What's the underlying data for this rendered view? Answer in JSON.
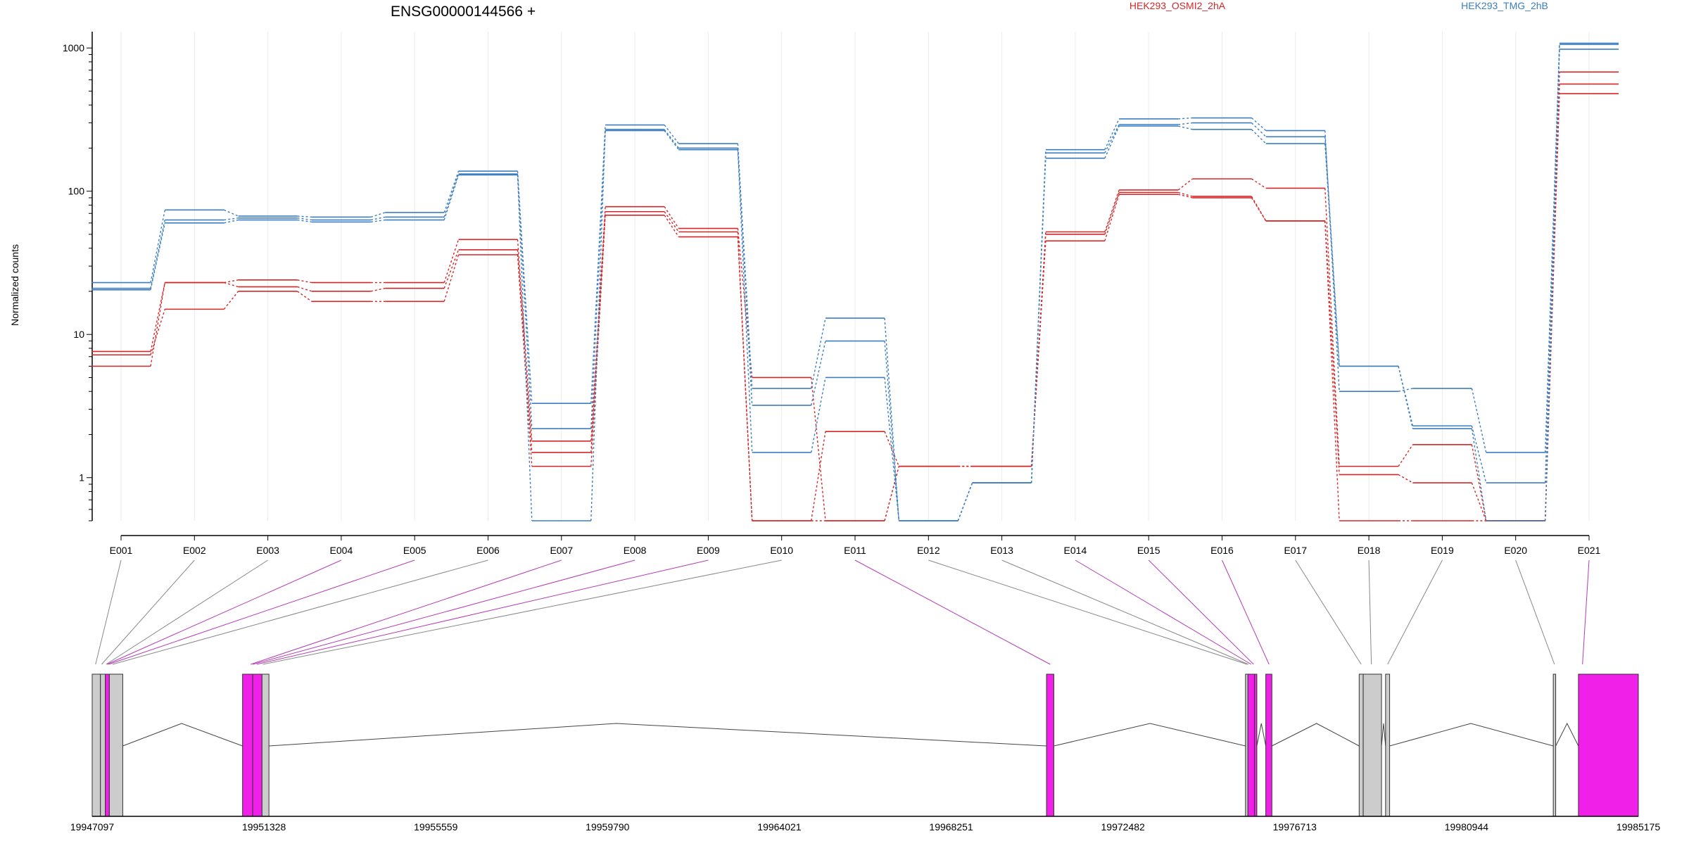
{
  "chart_data": {
    "type": "line",
    "title": "ENSG00000144566 +",
    "ylabel": "Normalized counts",
    "yscale": "log",
    "ylim": [
      0.5,
      1300
    ],
    "yticks": [
      1,
      10,
      100,
      1000
    ],
    "grid": true,
    "legend": [
      {
        "name": "HEK293_OSMI2_2hA",
        "color": "#D62728"
      },
      {
        "name": "HEK293_TMG_2hB",
        "color": "#3C7EC0"
      }
    ],
    "categories": [
      "E001",
      "E002",
      "E003",
      "E004",
      "E005",
      "E006",
      "E007",
      "E008",
      "E009",
      "E010",
      "E011",
      "E012",
      "E013",
      "E014",
      "E015",
      "E016",
      "E017",
      "E018",
      "E019",
      "E020",
      "E021"
    ],
    "series": [
      {
        "group": "HEK293_OSMI2_2hA",
        "color": "#D62728",
        "values": [
          7.2,
          15,
          20,
          17,
          17,
          36,
          1.2,
          68,
          48,
          0.5,
          0.5,
          1.2,
          1.2,
          45,
          95,
          90,
          62,
          0.5,
          0.5,
          0.5,
          480
        ]
      },
      {
        "group": "HEK293_OSMI2_2hA",
        "color": "#D62728",
        "values": [
          7.6,
          23,
          21.5,
          20,
          21,
          39,
          1.5,
          72,
          52,
          0.5,
          2.1,
          1.2,
          1.2,
          50,
          98,
          92,
          62,
          1.05,
          0.92,
          0.5,
          560
        ]
      },
      {
        "group": "HEK293_OSMI2_2hA",
        "color": "#D62728",
        "values": [
          6,
          23,
          24,
          23,
          23,
          46,
          1.8,
          78,
          55,
          5,
          0.5,
          1.2,
          1.2,
          52,
          102,
          122,
          105,
          1.2,
          1.7,
          0.5,
          680
        ]
      },
      {
        "group": "HEK293_TMG_2hB",
        "color": "#3C7EC0",
        "values": [
          20.5,
          60,
          63,
          61,
          63,
          130,
          2.2,
          265,
          195,
          1.5,
          5,
          0.5,
          0.92,
          170,
          285,
          270,
          215,
          6,
          2.2,
          0.5,
          980
        ]
      },
      {
        "group": "HEK293_TMG_2hB",
        "color": "#3C7EC0",
        "values": [
          21,
          63,
          65,
          63,
          66,
          132,
          0.5,
          270,
          200,
          3.2,
          9,
          0.5,
          0.92,
          185,
          292,
          300,
          240,
          6,
          2.3,
          0.92,
          1060
        ]
      },
      {
        "group": "HEK293_TMG_2hB",
        "color": "#3C7EC0",
        "values": [
          23,
          74,
          67,
          66,
          71,
          138,
          3.3,
          290,
          215,
          4.2,
          13,
          0.5,
          0.92,
          195,
          320,
          325,
          265,
          4,
          4.2,
          1.5,
          1080
        ]
      }
    ],
    "gene_model": {
      "axis_ticks": [
        "19947097",
        "19951328",
        "19955559",
        "19959790",
        "19964021",
        "19968251",
        "19972482",
        "19976713",
        "19980944",
        "19985175"
      ],
      "start": 19947097,
      "end": 19985175,
      "exons": [
        {
          "start": 19947097,
          "end": 19947300,
          "kind": "nontested"
        },
        {
          "start": 19947300,
          "end": 19947420,
          "kind": "nontested"
        },
        {
          "start": 19947420,
          "end": 19947520,
          "kind": "tested"
        },
        {
          "start": 19947520,
          "end": 19947850,
          "kind": "nontested"
        },
        {
          "start": 19950800,
          "end": 19951050,
          "kind": "tested"
        },
        {
          "start": 19951050,
          "end": 19951280,
          "kind": "tested"
        },
        {
          "start": 19951280,
          "end": 19951450,
          "kind": "nontested"
        },
        {
          "start": 19970600,
          "end": 19970780,
          "kind": "tested"
        },
        {
          "start": 19975500,
          "end": 19975560,
          "kind": "nontested"
        },
        {
          "start": 19975560,
          "end": 19975720,
          "kind": "tested"
        },
        {
          "start": 19975720,
          "end": 19975780,
          "kind": "tested"
        },
        {
          "start": 19976000,
          "end": 19976150,
          "kind": "tested"
        },
        {
          "start": 19978300,
          "end": 19978400,
          "kind": "nontested"
        },
        {
          "start": 19978400,
          "end": 19978850,
          "kind": "nontested"
        },
        {
          "start": 19978950,
          "end": 19979050,
          "kind": "nontested"
        },
        {
          "start": 19983080,
          "end": 19983140,
          "kind": "nontested"
        },
        {
          "start": 19983700,
          "end": 19985175,
          "kind": "tested"
        }
      ],
      "introns": [
        {
          "from": 19947850,
          "to": 19950800,
          "peak": 19949300
        },
        {
          "from": 19951450,
          "to": 19970600,
          "peak": 19960000
        },
        {
          "from": 19970780,
          "to": 19975500,
          "peak": 19973150
        },
        {
          "from": 19975780,
          "to": 19976000,
          "peak": 19975890
        },
        {
          "from": 19976150,
          "to": 19978300,
          "peak": 19977250
        },
        {
          "from": 19978850,
          "to": 19978950,
          "peak": 19978900
        },
        {
          "from": 19979050,
          "to": 19983080,
          "peak": 19981050
        },
        {
          "from": 19983140,
          "to": 19983700,
          "peak": 19983420
        }
      ],
      "exon_links": [
        {
          "pos": 19947180,
          "tested": false
        },
        {
          "pos": 19947330,
          "tested": false
        },
        {
          "pos": 19947440,
          "tested": false
        },
        {
          "pos": 19947460,
          "tested": true
        },
        {
          "pos": 19947500,
          "tested": true
        },
        {
          "pos": 19947600,
          "tested": false
        },
        {
          "pos": 19951000,
          "tested": true
        },
        {
          "pos": 19951050,
          "tested": true
        },
        {
          "pos": 19951150,
          "tested": true
        },
        {
          "pos": 19951300,
          "tested": false
        },
        {
          "pos": 19970690,
          "tested": true
        },
        {
          "pos": 19975540,
          "tested": false
        },
        {
          "pos": 19975570,
          "tested": false
        },
        {
          "pos": 19975640,
          "tested": true
        },
        {
          "pos": 19975700,
          "tested": true
        },
        {
          "pos": 19976080,
          "tested": true
        },
        {
          "pos": 19978350,
          "tested": false
        },
        {
          "pos": 19978600,
          "tested": false
        },
        {
          "pos": 19979000,
          "tested": false
        },
        {
          "pos": 19983110,
          "tested": false
        },
        {
          "pos": 19983800,
          "tested": true
        }
      ]
    }
  }
}
